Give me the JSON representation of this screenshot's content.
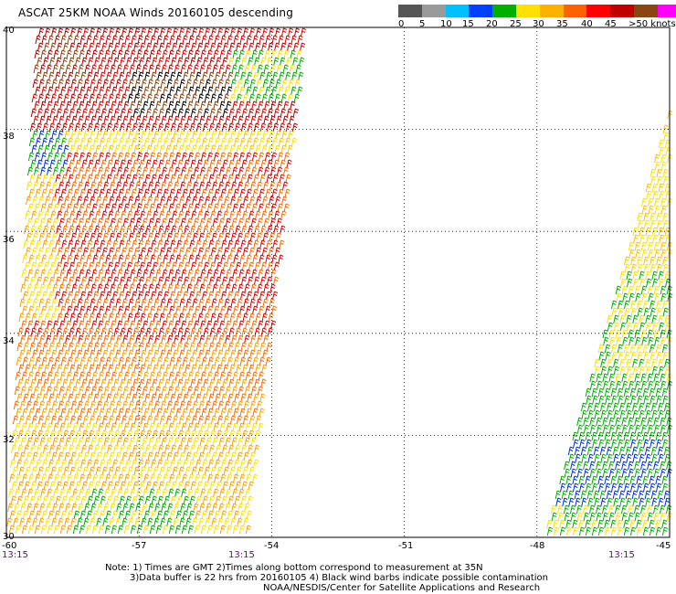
{
  "title": "ASCAT 25KM NOAA Winds 20160105 descending",
  "legend": {
    "colors": [
      "#555555",
      "#9a9a9a",
      "#00bfff",
      "#0040ff",
      "#00b000",
      "#ffe000",
      "#ffb000",
      "#ff6000",
      "#ff0000",
      "#c00000",
      "#8b4513",
      "#ff00ff",
      "#a000d0"
    ],
    "labels": [
      "0",
      "5",
      "10",
      "15",
      "20",
      "25",
      "30",
      "35",
      "40",
      "45",
      ">50 knots"
    ]
  },
  "axes": {
    "lat_labels": [
      "40",
      "38",
      "36",
      "34",
      "32",
      "30"
    ],
    "lon_labels": [
      "-60",
      "-57",
      "-54",
      "-51",
      "-48",
      "-45"
    ],
    "lat_range": [
      30,
      40
    ],
    "lon_range": [
      -60,
      -45
    ],
    "grid": "dotted"
  },
  "time_labels": [
    "13:15",
    "13:15",
    "13:15"
  ],
  "notes": {
    "line1": "Note: 1) Times are GMT 2)Times along bottom correspond to measurement at 35N",
    "line2": "3)Data buffer is 22 hrs from 20160105 4) Black wind barbs indicate possible contamination",
    "line3": "NOAA/NESDIS/Center for Satellite Applications and Research"
  },
  "swaths": {
    "west_lon_range": [
      -60,
      -53.4
    ],
    "east_lon_range": [
      -48,
      -45
    ]
  }
}
